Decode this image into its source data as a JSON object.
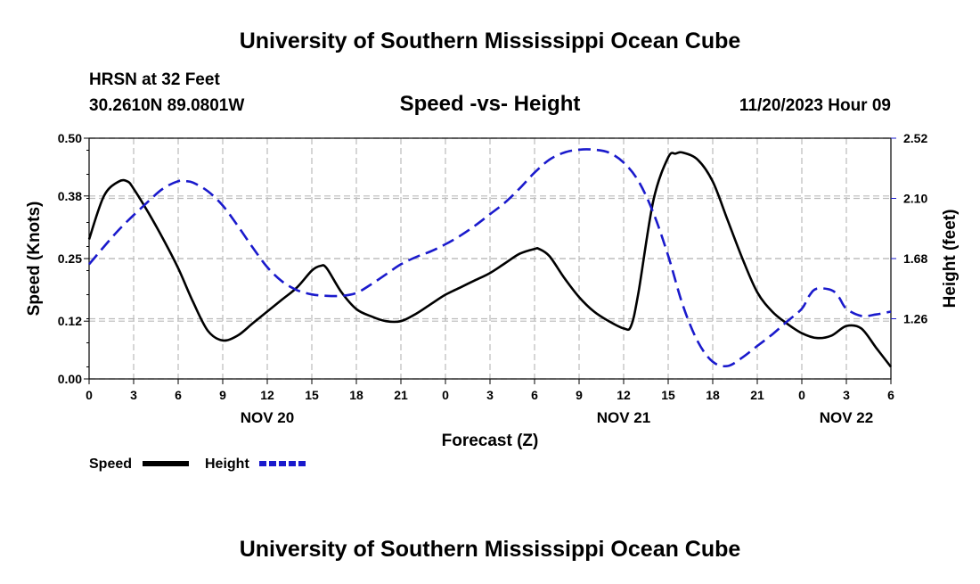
{
  "header": {
    "title": "University of Southern Mississippi Ocean Cube",
    "station": "HRSN at 32 Feet",
    "coords": "30.2610N  89.0801W",
    "chart_title": "Speed -vs- Height",
    "datetime": "11/20/2023 Hour 09"
  },
  "footer": {
    "title": "University of Southern Mississippi Ocean Cube"
  },
  "legend": {
    "speed_label": "Speed",
    "height_label": "Height"
  },
  "colors": {
    "speed": "#000000",
    "height": "#1a1acc",
    "grid": "#bbbbbb"
  },
  "chart_data": {
    "type": "line",
    "title": "Speed -vs- Height",
    "xlabel": "Forecast (Z)",
    "ylabel": "Speed (Knots)",
    "y2label": "Height (feet)",
    "x_unit": "hours since NOV 20 00Z",
    "xlim": [
      0,
      54
    ],
    "x_ticks": [
      0,
      3,
      6,
      9,
      12,
      15,
      18,
      21,
      24,
      27,
      30,
      33,
      36,
      39,
      42,
      45,
      48,
      51,
      54
    ],
    "x_tick_labels": [
      "0",
      "3",
      "6",
      "9",
      "12",
      "15",
      "18",
      "21",
      "0",
      "3",
      "6",
      "9",
      "12",
      "15",
      "18",
      "21",
      "0",
      "3",
      "6"
    ],
    "day_labels": [
      {
        "x": 12,
        "label": "NOV 20"
      },
      {
        "x": 36,
        "label": "NOV 21"
      },
      {
        "x": 51,
        "label": "NOV 22"
      }
    ],
    "ylim": [
      0,
      0.5
    ],
    "y_ticks": [
      0.0,
      0.12,
      0.25,
      0.38,
      0.5
    ],
    "y_tick_labels": [
      "0.00",
      "0.12",
      "0.25",
      "0.38",
      "0.50"
    ],
    "y2lim": [
      0.84,
      2.52
    ],
    "y2_ticks": [
      1.26,
      1.68,
      2.1,
      2.52
    ],
    "y2_tick_labels": [
      "1.26",
      "1.68",
      "2.10",
      "2.52"
    ],
    "grid": true,
    "series": [
      {
        "name": "Speed",
        "axis": "left",
        "style": "solid",
        "x": [
          0,
          1,
          2,
          2.6,
          3,
          4,
          5,
          6,
          7,
          8,
          9,
          10,
          11,
          12,
          13,
          14,
          15,
          15.6,
          16,
          17,
          18,
          19,
          20,
          21,
          22,
          23,
          24,
          25,
          26,
          27,
          28,
          29,
          30,
          30.3,
          31,
          32,
          33,
          34,
          35,
          36,
          36.5,
          37,
          38,
          39,
          39.5,
          40,
          41,
          42,
          43,
          44,
          45,
          46,
          47,
          48,
          49,
          50,
          51,
          52,
          53,
          54
        ],
        "y": [
          0.29,
          0.38,
          0.41,
          0.41,
          0.395,
          0.345,
          0.29,
          0.23,
          0.16,
          0.1,
          0.08,
          0.09,
          0.115,
          0.14,
          0.165,
          0.19,
          0.225,
          0.235,
          0.23,
          0.18,
          0.145,
          0.13,
          0.12,
          0.12,
          0.135,
          0.155,
          0.175,
          0.19,
          0.205,
          0.22,
          0.24,
          0.26,
          0.27,
          0.27,
          0.255,
          0.21,
          0.17,
          0.14,
          0.12,
          0.105,
          0.11,
          0.18,
          0.37,
          0.46,
          0.468,
          0.47,
          0.455,
          0.41,
          0.33,
          0.25,
          0.18,
          0.14,
          0.115,
          0.095,
          0.085,
          0.09,
          0.11,
          0.105,
          0.065,
          0.025
        ]
      },
      {
        "name": "Height",
        "axis": "right",
        "style": "dashed",
        "x": [
          0,
          2,
          4,
          5,
          6,
          6.5,
          7,
          8,
          9,
          10,
          11,
          12,
          13,
          14,
          15,
          16,
          17,
          18,
          19,
          20,
          21,
          22,
          23,
          24,
          25,
          26,
          27,
          28,
          29,
          30,
          31,
          32,
          33,
          34,
          35,
          36,
          37,
          38,
          39,
          40,
          41,
          42,
          43,
          44,
          45,
          46,
          47,
          48,
          48.5,
          49,
          50,
          50.5,
          51,
          52,
          53,
          54
        ],
        "y": [
          1.64,
          1.88,
          2.08,
          2.17,
          2.22,
          2.22,
          2.21,
          2.15,
          2.05,
          1.91,
          1.76,
          1.62,
          1.52,
          1.46,
          1.43,
          1.42,
          1.42,
          1.44,
          1.5,
          1.57,
          1.64,
          1.69,
          1.73,
          1.78,
          1.84,
          1.91,
          1.99,
          2.07,
          2.17,
          2.28,
          2.37,
          2.42,
          2.44,
          2.44,
          2.42,
          2.35,
          2.22,
          2.0,
          1.7,
          1.35,
          1.1,
          0.96,
          0.93,
          0.99,
          1.07,
          1.15,
          1.24,
          1.33,
          1.42,
          1.47,
          1.46,
          1.41,
          1.33,
          1.28,
          1.29,
          1.31
        ]
      }
    ]
  }
}
